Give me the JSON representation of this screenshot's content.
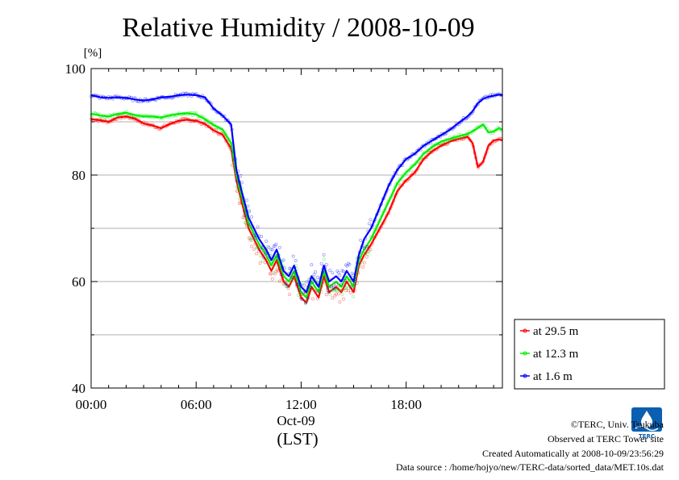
{
  "chart_data": {
    "type": "line",
    "title": "Relative Humidity / 2008-10-09",
    "ylabel": "[%]",
    "xlabel": "Oct-09",
    "xlabel_note": "(LST)",
    "ylim": [
      40,
      100
    ],
    "yticks": [
      40,
      60,
      80,
      100
    ],
    "ygrid": [
      50,
      60,
      70,
      80,
      90
    ],
    "xlim": [
      0,
      23.5
    ],
    "xticks": [
      {
        "at": 0,
        "label": "00:00"
      },
      {
        "at": 6,
        "label": "06:00"
      },
      {
        "at": 12,
        "label": "12:00"
      },
      {
        "at": 18,
        "label": "18:00"
      }
    ],
    "grid": true,
    "legend_position": "lower-right outside",
    "series": [
      {
        "name": "at 29.5 m",
        "color": "#ff0000",
        "points": [
          [
            0,
            90.5
          ],
          [
            0.5,
            90.3
          ],
          [
            1,
            90
          ],
          [
            1.5,
            90.8
          ],
          [
            2,
            91
          ],
          [
            2.5,
            90.6
          ],
          [
            3,
            89.7
          ],
          [
            3.5,
            89.3
          ],
          [
            4,
            88.8
          ],
          [
            4.5,
            89.6
          ],
          [
            5,
            90.2
          ],
          [
            5.5,
            90.4
          ],
          [
            6,
            90.2
          ],
          [
            6.5,
            89.6
          ],
          [
            7,
            88.4
          ],
          [
            7.5,
            87.6
          ],
          [
            8,
            85
          ],
          [
            8.3,
            79
          ],
          [
            8.6,
            75
          ],
          [
            9,
            70
          ],
          [
            9.3,
            68
          ],
          [
            9.6,
            66
          ],
          [
            10,
            64
          ],
          [
            10.3,
            62
          ],
          [
            10.6,
            64
          ],
          [
            11,
            60
          ],
          [
            11.3,
            59
          ],
          [
            11.6,
            61
          ],
          [
            12,
            57
          ],
          [
            12.3,
            56
          ],
          [
            12.6,
            59
          ],
          [
            13,
            57
          ],
          [
            13.3,
            61
          ],
          [
            13.6,
            58
          ],
          [
            14,
            59
          ],
          [
            14.3,
            58
          ],
          [
            14.6,
            60
          ],
          [
            15,
            58
          ],
          [
            15.3,
            63
          ],
          [
            15.6,
            65
          ],
          [
            16,
            67
          ],
          [
            16.5,
            70
          ],
          [
            17,
            73
          ],
          [
            17.5,
            77
          ],
          [
            18,
            79
          ],
          [
            18.5,
            80.5
          ],
          [
            19,
            83
          ],
          [
            19.5,
            84.5
          ],
          [
            20,
            85.5
          ],
          [
            20.5,
            86.3
          ],
          [
            21,
            86.8
          ],
          [
            21.5,
            87.2
          ],
          [
            21.8,
            86
          ],
          [
            22.1,
            81.5
          ],
          [
            22.4,
            82.5
          ],
          [
            22.7,
            85.5
          ],
          [
            23,
            86.5
          ],
          [
            23.3,
            86.7
          ],
          [
            23.5,
            86.5
          ]
        ]
      },
      {
        "name": "at 12.3 m",
        "color": "#00ee00",
        "points": [
          [
            0,
            91.5
          ],
          [
            0.5,
            91.2
          ],
          [
            1,
            91
          ],
          [
            1.5,
            91.5
          ],
          [
            2,
            91.7
          ],
          [
            2.5,
            91.3
          ],
          [
            3,
            91
          ],
          [
            3.5,
            91
          ],
          [
            4,
            90.8
          ],
          [
            4.5,
            91.2
          ],
          [
            5,
            91.5
          ],
          [
            5.5,
            91.6
          ],
          [
            6,
            91.4
          ],
          [
            6.5,
            90.5
          ],
          [
            7,
            89.4
          ],
          [
            7.5,
            88.6
          ],
          [
            8,
            86
          ],
          [
            8.3,
            80
          ],
          [
            8.6,
            76
          ],
          [
            9,
            71
          ],
          [
            9.3,
            69
          ],
          [
            9.6,
            67
          ],
          [
            10,
            65
          ],
          [
            10.3,
            63
          ],
          [
            10.6,
            65
          ],
          [
            11,
            61
          ],
          [
            11.3,
            60
          ],
          [
            11.6,
            62
          ],
          [
            12,
            58
          ],
          [
            12.3,
            57
          ],
          [
            12.6,
            60
          ],
          [
            13,
            58
          ],
          [
            13.3,
            62
          ],
          [
            13.6,
            59
          ],
          [
            14,
            60
          ],
          [
            14.3,
            59
          ],
          [
            14.6,
            61
          ],
          [
            15,
            59
          ],
          [
            15.3,
            64
          ],
          [
            15.6,
            66
          ],
          [
            16,
            68
          ],
          [
            16.5,
            71.5
          ],
          [
            17,
            75
          ],
          [
            17.5,
            78.5
          ],
          [
            18,
            80.5
          ],
          [
            18.5,
            82
          ],
          [
            19,
            84
          ],
          [
            19.5,
            85.3
          ],
          [
            20,
            86.3
          ],
          [
            20.5,
            86.8
          ],
          [
            21,
            87.3
          ],
          [
            21.5,
            87.7
          ],
          [
            22,
            88.6
          ],
          [
            22.4,
            89.5
          ],
          [
            22.7,
            88
          ],
          [
            23,
            88.2
          ],
          [
            23.3,
            88.8
          ],
          [
            23.5,
            88.5
          ]
        ]
      },
      {
        "name": "at 1.6 m",
        "color": "#0000ff",
        "points": [
          [
            0,
            95
          ],
          [
            0.5,
            94.6
          ],
          [
            1,
            94.5
          ],
          [
            1.5,
            94.6
          ],
          [
            2,
            94.5
          ],
          [
            2.5,
            94.2
          ],
          [
            3,
            94
          ],
          [
            3.5,
            94.2
          ],
          [
            4,
            94.6
          ],
          [
            4.5,
            94.7
          ],
          [
            5,
            95
          ],
          [
            5.5,
            95.1
          ],
          [
            6,
            95
          ],
          [
            6.5,
            94.6
          ],
          [
            7,
            92.5
          ],
          [
            7.5,
            91.2
          ],
          [
            8,
            89.5
          ],
          [
            8.3,
            81
          ],
          [
            8.6,
            77
          ],
          [
            9,
            72
          ],
          [
            9.3,
            70
          ],
          [
            9.6,
            68
          ],
          [
            10,
            66
          ],
          [
            10.3,
            64
          ],
          [
            10.6,
            66
          ],
          [
            11,
            62
          ],
          [
            11.3,
            61
          ],
          [
            11.6,
            63
          ],
          [
            12,
            59
          ],
          [
            12.3,
            58
          ],
          [
            12.6,
            61
          ],
          [
            13,
            59
          ],
          [
            13.3,
            63
          ],
          [
            13.6,
            60
          ],
          [
            14,
            61
          ],
          [
            14.3,
            60
          ],
          [
            14.6,
            62
          ],
          [
            15,
            60
          ],
          [
            15.3,
            65
          ],
          [
            15.6,
            68
          ],
          [
            16,
            70
          ],
          [
            16.5,
            74
          ],
          [
            17,
            78
          ],
          [
            17.5,
            81
          ],
          [
            18,
            83
          ],
          [
            18.5,
            84
          ],
          [
            19,
            85.5
          ],
          [
            19.5,
            86.5
          ],
          [
            20,
            87.5
          ],
          [
            20.5,
            88.5
          ],
          [
            21,
            89.8
          ],
          [
            21.5,
            91
          ],
          [
            21.8,
            92
          ],
          [
            22.1,
            93.5
          ],
          [
            22.4,
            94.3
          ],
          [
            22.7,
            94.7
          ],
          [
            23,
            94.9
          ],
          [
            23.3,
            95.1
          ],
          [
            23.5,
            95
          ]
        ]
      }
    ]
  },
  "footer": {
    "copyright": "©TERC, Univ. Tsukuba",
    "site": "Observed at TERC Tower site",
    "created": "Created Automatically at 2008-10-09/23:56:29",
    "source": "Data source : /home/hojyo/new/TERC-data/sorted_data/MET.10s.dat"
  },
  "logo": {
    "text": "TERC",
    "color": "#0b5fb0"
  }
}
